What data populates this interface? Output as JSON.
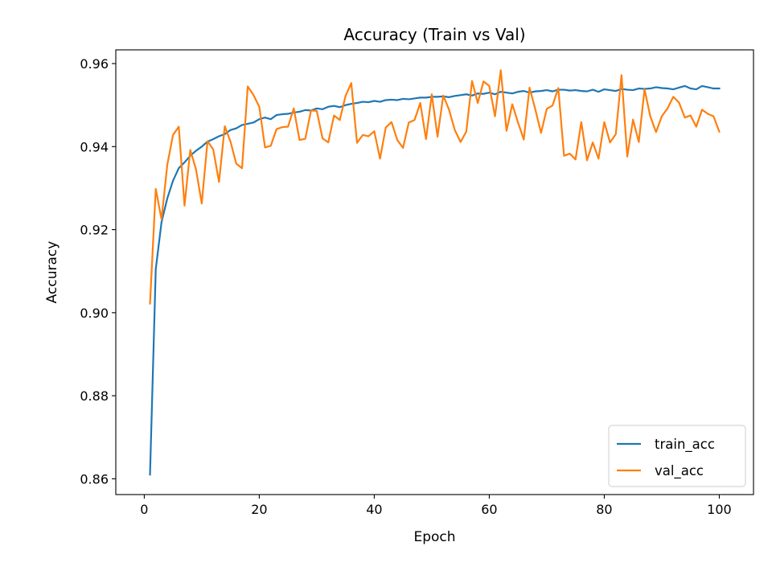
{
  "chart_data": {
    "type": "line",
    "title": "Accuracy (Train vs Val)",
    "xlabel": "Epoch",
    "ylabel": "Accuracy",
    "xlim": [
      -4.95,
      105.95
    ],
    "ylim": [
      0.8562,
      0.9633
    ],
    "xticks": [
      0,
      20,
      40,
      60,
      80,
      100
    ],
    "yticks": [
      0.86,
      0.88,
      0.9,
      0.92,
      0.94,
      0.96
    ],
    "ytick_labels": [
      "0.86",
      "0.88",
      "0.90",
      "0.92",
      "0.94",
      "0.96"
    ],
    "grid": false,
    "legend_position": "lower-right",
    "x": [
      1,
      2,
      3,
      4,
      5,
      6,
      7,
      8,
      9,
      10,
      11,
      12,
      13,
      14,
      15,
      16,
      17,
      18,
      19,
      20,
      21,
      22,
      23,
      24,
      25,
      26,
      27,
      28,
      29,
      30,
      31,
      32,
      33,
      34,
      35,
      36,
      37,
      38,
      39,
      40,
      41,
      42,
      43,
      44,
      45,
      46,
      47,
      48,
      49,
      50,
      51,
      52,
      53,
      54,
      55,
      56,
      57,
      58,
      59,
      60,
      61,
      62,
      63,
      64,
      65,
      66,
      67,
      68,
      69,
      70,
      71,
      72,
      73,
      74,
      75,
      76,
      77,
      78,
      79,
      80,
      81,
      82,
      83,
      84,
      85,
      86,
      87,
      88,
      89,
      90,
      91,
      92,
      93,
      94,
      95,
      96,
      97,
      98,
      99,
      100
    ],
    "series": [
      {
        "name": "train_acc",
        "color": "#1f77b4",
        "values": [
          0.861,
          0.9105,
          0.9218,
          0.9275,
          0.9318,
          0.9348,
          0.9362,
          0.9378,
          0.939,
          0.94,
          0.9412,
          0.9418,
          0.9425,
          0.943,
          0.944,
          0.9444,
          0.9452,
          0.9455,
          0.9458,
          0.9466,
          0.947,
          0.9466,
          0.9476,
          0.9478,
          0.9479,
          0.9482,
          0.9484,
          0.9488,
          0.9487,
          0.9492,
          0.949,
          0.9496,
          0.9498,
          0.9495,
          0.95,
          0.9503,
          0.9505,
          0.9508,
          0.9507,
          0.951,
          0.9508,
          0.9512,
          0.9513,
          0.9512,
          0.9515,
          0.9514,
          0.9516,
          0.9518,
          0.9518,
          0.952,
          0.952,
          0.9521,
          0.9519,
          0.9522,
          0.9524,
          0.9526,
          0.9523,
          0.9528,
          0.9527,
          0.953,
          0.9526,
          0.9532,
          0.953,
          0.9528,
          0.9532,
          0.9534,
          0.953,
          0.9533,
          0.9534,
          0.9536,
          0.9533,
          0.9537,
          0.9537,
          0.9535,
          0.9536,
          0.9534,
          0.9533,
          0.9537,
          0.9532,
          0.9538,
          0.9536,
          0.9534,
          0.9539,
          0.9537,
          0.9536,
          0.954,
          0.9539,
          0.954,
          0.9543,
          0.9541,
          0.954,
          0.9538,
          0.9542,
          0.9546,
          0.954,
          0.9538,
          0.9546,
          0.9543,
          0.954,
          0.954
        ]
      },
      {
        "name": "val_acc",
        "color": "#ff7f0e",
        "values": [
          0.9022,
          0.9298,
          0.9225,
          0.9356,
          0.9428,
          0.9448,
          0.9258,
          0.9392,
          0.9345,
          0.9263,
          0.9413,
          0.9393,
          0.9315,
          0.9449,
          0.9412,
          0.9359,
          0.9348,
          0.9545,
          0.9524,
          0.9496,
          0.9398,
          0.9402,
          0.9442,
          0.9447,
          0.9448,
          0.9492,
          0.9416,
          0.9419,
          0.9487,
          0.9486,
          0.942,
          0.941,
          0.9475,
          0.9464,
          0.9522,
          0.9553,
          0.9409,
          0.9428,
          0.9425,
          0.9437,
          0.9371,
          0.9446,
          0.9459,
          0.9416,
          0.9397,
          0.9458,
          0.9464,
          0.9505,
          0.9418,
          0.9526,
          0.9424,
          0.9523,
          0.9489,
          0.944,
          0.9411,
          0.9436,
          0.9558,
          0.9505,
          0.9557,
          0.9546,
          0.9473,
          0.9584,
          0.9438,
          0.9502,
          0.9458,
          0.9417,
          0.9542,
          0.949,
          0.9433,
          0.9491,
          0.9499,
          0.9541,
          0.9378,
          0.9383,
          0.9369,
          0.9459,
          0.9367,
          0.941,
          0.9371,
          0.9459,
          0.941,
          0.943,
          0.9572,
          0.9376,
          0.9465,
          0.9411,
          0.9538,
          0.9473,
          0.9435,
          0.9473,
          0.9492,
          0.952,
          0.9506,
          0.947,
          0.9475,
          0.9448,
          0.9489,
          0.9479,
          0.9473,
          0.9436
        ]
      }
    ]
  }
}
